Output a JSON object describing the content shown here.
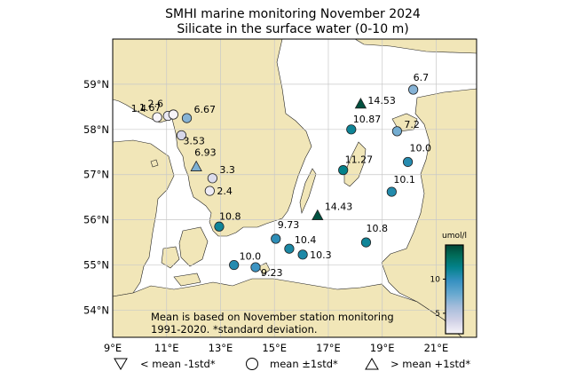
{
  "title": "SMHI marine monitoring November 2024",
  "subtitle": "Silicate in the surface water (0-10 m)",
  "map": {
    "lon_range": [
      9,
      22.5
    ],
    "lat_range": [
      53.4,
      60.0
    ],
    "lon_ticks": [
      "9°E",
      "11°E",
      "13°E",
      "15°E",
      "17°E",
      "19°E",
      "21°E"
    ],
    "lat_ticks": [
      "54°N",
      "55°N",
      "56°N",
      "57°N",
      "58°N",
      "59°N"
    ],
    "colors": {
      "sea": "#ffffff",
      "land": "#f1e6b8",
      "grid": "#c8c8c8",
      "frame": "#000000"
    }
  },
  "stations": [
    {
      "label": "1.4",
      "value": 1.4,
      "marker": "circle",
      "lon": 10.65,
      "lat": 58.27
    },
    {
      "label": "2.6",
      "value": 2.6,
      "marker": "circle",
      "lon": 11.05,
      "lat": 58.3
    },
    {
      "label": "1.67",
      "value": 1.67,
      "marker": "circle",
      "lon": 11.25,
      "lat": 58.33
    },
    {
      "label": "6.67",
      "value": 6.67,
      "marker": "circle",
      "lon": 11.75,
      "lat": 58.25
    },
    {
      "label": "3.53",
      "value": 3.53,
      "marker": "circle",
      "lon": 11.55,
      "lat": 57.87
    },
    {
      "label": "6.93",
      "value": 6.93,
      "marker": "triangle",
      "lon": 12.1,
      "lat": 57.18
    },
    {
      "label": "3.3",
      "value": 3.3,
      "marker": "circle",
      "lon": 12.7,
      "lat": 56.92
    },
    {
      "label": "2.4",
      "value": 2.4,
      "marker": "circle",
      "lon": 12.6,
      "lat": 56.64
    },
    {
      "label": "10.8",
      "value": 10.8,
      "marker": "circle",
      "lon": 12.95,
      "lat": 55.85
    },
    {
      "label": "10.0",
      "value": 10.0,
      "marker": "circle",
      "lon": 13.5,
      "lat": 55.0
    },
    {
      "label": "9.23",
      "value": 9.23,
      "marker": "circle",
      "lon": 14.3,
      "lat": 54.95
    },
    {
      "label": "9.73",
      "value": 9.73,
      "marker": "circle",
      "lon": 15.05,
      "lat": 55.58
    },
    {
      "label": "10.4",
      "value": 10.4,
      "marker": "circle",
      "lon": 15.55,
      "lat": 55.36
    },
    {
      "label": "10.3",
      "value": 10.3,
      "marker": "circle",
      "lon": 16.05,
      "lat": 55.23
    },
    {
      "label": "14.43",
      "value": 14.43,
      "marker": "triangle",
      "lon": 16.6,
      "lat": 56.1
    },
    {
      "label": "10.8",
      "value": 10.8,
      "marker": "circle",
      "lon": 18.4,
      "lat": 55.5
    },
    {
      "label": "11.27",
      "value": 11.27,
      "marker": "circle",
      "lon": 17.55,
      "lat": 57.1
    },
    {
      "label": "10.87",
      "value": 10.87,
      "marker": "circle",
      "lon": 17.85,
      "lat": 58.0
    },
    {
      "label": "14.53",
      "value": 14.53,
      "marker": "triangle",
      "lon": 18.2,
      "lat": 58.57
    },
    {
      "label": "6.7",
      "value": 6.7,
      "marker": "circle",
      "lon": 20.15,
      "lat": 58.88
    },
    {
      "label": "7.2",
      "value": 7.2,
      "marker": "circle",
      "lon": 19.55,
      "lat": 57.96
    },
    {
      "label": "10.0",
      "value": 10.0,
      "marker": "circle",
      "lon": 19.95,
      "lat": 57.28
    },
    {
      "label": "10.1",
      "value": 10.1,
      "marker": "circle",
      "lon": 19.35,
      "lat": 56.62
    }
  ],
  "colorbar": {
    "unit": "umol/l",
    "ticks": [
      "5",
      "10"
    ],
    "range": [
      2,
      15
    ],
    "stops": [
      "#f7f4f9",
      "#d0d1e6",
      "#a6bddb",
      "#67a9cf",
      "#3690c0",
      "#02818a",
      "#016c59",
      "#014636"
    ]
  },
  "note": {
    "line1": "Mean is based on November station monitoring",
    "line2": "1991-2020. *standard deviation."
  },
  "legend": {
    "below": "< mean -1std*",
    "within": "mean ±1std*",
    "above": "> mean +1std*"
  }
}
